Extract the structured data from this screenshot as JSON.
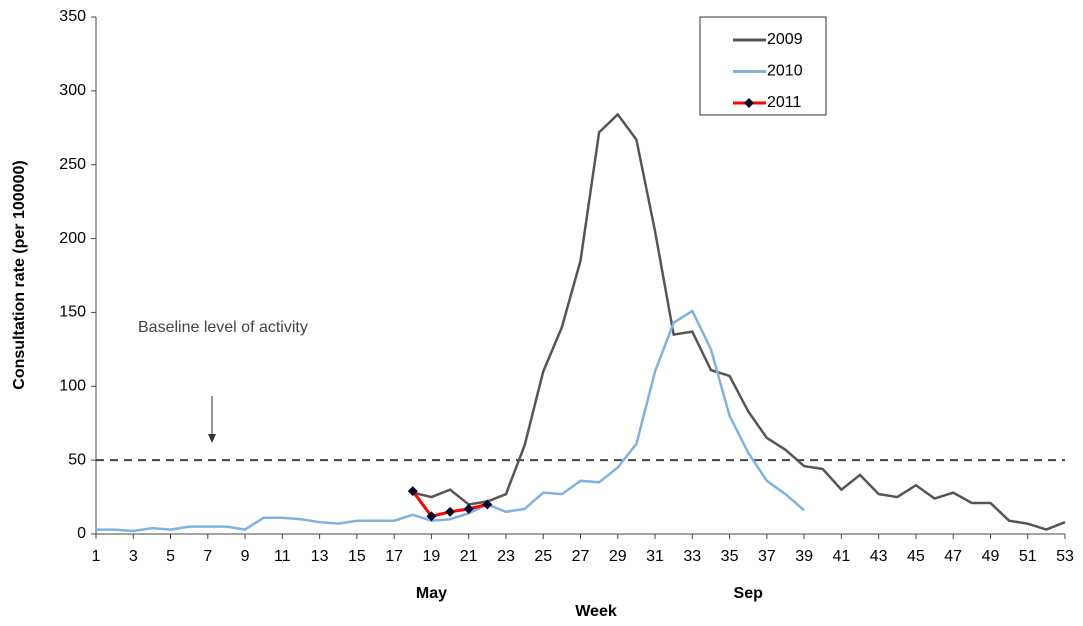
{
  "chart_data": {
    "type": "line",
    "x_label": "Week",
    "y_label": "Consultation rate (per 100000)",
    "xlim": [
      1,
      53
    ],
    "xticks": [
      1,
      3,
      5,
      7,
      9,
      11,
      13,
      15,
      17,
      19,
      21,
      23,
      25,
      27,
      29,
      31,
      33,
      35,
      37,
      39,
      41,
      43,
      45,
      47,
      49,
      51,
      53
    ],
    "ylim": [
      0,
      350
    ],
    "yticks": [
      0,
      50,
      100,
      150,
      200,
      250,
      300,
      350
    ],
    "baseline": {
      "value": 50,
      "label": "Baseline level of activity"
    },
    "month_labels": [
      {
        "x": 19,
        "label": "May"
      },
      {
        "x": 36,
        "label": "Sep"
      }
    ],
    "series": [
      {
        "name": "2009",
        "color": "#555555",
        "x": [
          18,
          19,
          20,
          21,
          22,
          23,
          24,
          25,
          26,
          27,
          28,
          29,
          30,
          31,
          32,
          33,
          34,
          35,
          36,
          37,
          38,
          39,
          40,
          41,
          42,
          43,
          44,
          45,
          46,
          47,
          48,
          49,
          50,
          51,
          52,
          53
        ],
        "values": [
          28,
          25,
          30,
          20,
          22,
          27,
          60,
          110,
          140,
          185,
          272,
          284,
          267,
          205,
          135,
          137,
          111,
          107,
          83,
          65,
          57,
          46,
          44,
          30,
          40,
          27,
          25,
          33,
          24,
          28,
          21,
          21,
          9,
          7,
          3,
          8
        ]
      },
      {
        "name": "2010",
        "color": "#7fb2e0",
        "x": [
          1,
          2,
          3,
          4,
          5,
          6,
          7,
          8,
          9,
          10,
          11,
          12,
          13,
          14,
          15,
          16,
          17,
          18,
          19,
          20,
          21,
          22,
          23,
          24,
          25,
          26,
          27,
          28,
          29,
          30,
          31,
          32,
          33,
          34,
          35,
          36,
          37,
          38,
          39
        ],
        "values": [
          3,
          3,
          2,
          4,
          3,
          5,
          5,
          5,
          3,
          11,
          11,
          10,
          8,
          7,
          9,
          9,
          9,
          13,
          9,
          10,
          14,
          20,
          15,
          17,
          28,
          27,
          36,
          35,
          45,
          61,
          110,
          143,
          151,
          125,
          80,
          55,
          36,
          27,
          16
        ]
      },
      {
        "name": "2011",
        "color": "#ff0000",
        "marker_color": "#0a0a2a",
        "x": [
          18,
          19,
          20,
          21,
          22
        ],
        "values": [
          29,
          12,
          15,
          17,
          20
        ]
      }
    ]
  }
}
